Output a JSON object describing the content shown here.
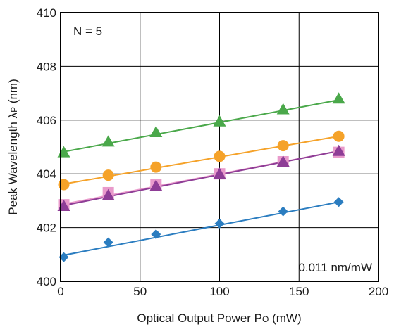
{
  "chart_data": {
    "type": "line",
    "title": "",
    "xlabel": "Optical Output Power  P",
    "xlabel_sub": "O",
    "xlabel_unit": " (mW)",
    "ylabel": "Peak Wavelength  λ",
    "ylabel_sub": "P",
    "ylabel_unit": " (nm)",
    "xlim": [
      0,
      200
    ],
    "ylim": [
      400,
      410
    ],
    "xticks": [
      "0",
      "50",
      "100",
      "150",
      "200"
    ],
    "yticks": [
      "400",
      "402",
      "404",
      "406",
      "408",
      "410"
    ],
    "grid": true,
    "annotations": {
      "n_label": "N = 5",
      "slope_label": "0.011 nm/mW"
    },
    "series": [
      {
        "marker": "triangle",
        "color": "#4aa84a",
        "points": [
          [
            2,
            404.8
          ],
          [
            30,
            405.2
          ],
          [
            60,
            405.55
          ],
          [
            100,
            405.95
          ],
          [
            140,
            406.4
          ],
          [
            175,
            406.8
          ]
        ],
        "fit": [
          [
            0,
            404.8
          ],
          [
            175,
            406.75
          ]
        ]
      },
      {
        "marker": "circle",
        "color": "#f5a229",
        "points": [
          [
            2,
            403.6
          ],
          [
            30,
            403.95
          ],
          [
            60,
            404.25
          ],
          [
            100,
            404.65
          ],
          [
            140,
            405.05
          ],
          [
            175,
            405.4
          ]
        ],
        "fit": [
          [
            0,
            403.6
          ],
          [
            175,
            405.4
          ]
        ]
      },
      {
        "marker": "square",
        "color": "#e99acb",
        "points": [
          [
            2,
            402.85
          ],
          [
            30,
            403.3
          ],
          [
            60,
            403.6
          ],
          [
            100,
            404.0
          ],
          [
            140,
            404.45
          ],
          [
            175,
            404.8
          ]
        ],
        "fit": [
          [
            0,
            402.85
          ],
          [
            175,
            404.85
          ]
        ]
      },
      {
        "marker": "triangle",
        "color": "#8e3d96",
        "points": [
          [
            2,
            402.8
          ],
          [
            30,
            403.2
          ],
          [
            60,
            403.55
          ],
          [
            100,
            404.0
          ],
          [
            140,
            404.45
          ],
          [
            175,
            404.85
          ]
        ],
        "fit": [
          [
            0,
            402.8
          ],
          [
            175,
            404.85
          ]
        ]
      },
      {
        "marker": "diamond",
        "color": "#2b7dc0",
        "points": [
          [
            2,
            400.9
          ],
          [
            30,
            401.45
          ],
          [
            60,
            401.75
          ],
          [
            100,
            402.15
          ],
          [
            140,
            402.6
          ],
          [
            175,
            402.95
          ]
        ],
        "fit": [
          [
            0,
            400.95
          ],
          [
            175,
            402.95
          ]
        ]
      }
    ]
  }
}
